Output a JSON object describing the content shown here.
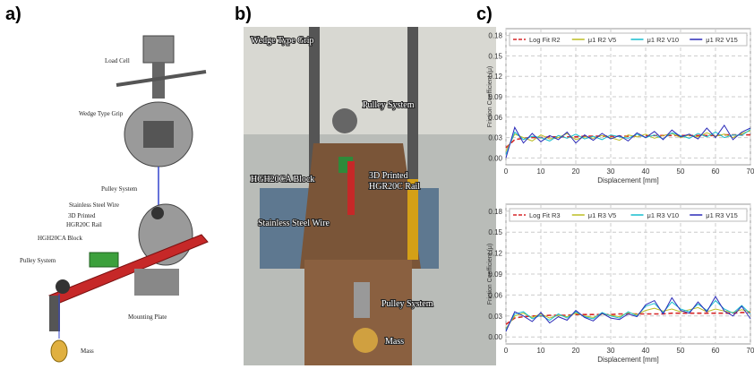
{
  "panel_labels": [
    "a)",
    "b)",
    "c)"
  ],
  "diagram": {
    "labels": [
      "Load Cell",
      "Wedge Type Grip",
      "Pulley System",
      "Stainless Steel Wire",
      [
        "3D Printed",
        "HGR20C Rail"
      ],
      "HGH20CA Block",
      "Pulley System",
      "Mounting Plate",
      "Mass"
    ]
  },
  "photo": {
    "labels": [
      "Wedge Type Grip",
      "Pulley System",
      "HGH20CA Block",
      [
        "3D Printed",
        "HGR20C Rail"
      ],
      "Stainless Steel Wire",
      "Pulley System",
      "Mass"
    ]
  },
  "chart_data": [
    {
      "type": "line",
      "xlabel": "Displacement [mm]",
      "ylabel": "Friction Coefficient (μ)",
      "grid": true,
      "legend": "upper center",
      "xlim": [
        0,
        70
      ],
      "xticks": [
        0,
        10,
        20,
        30,
        40,
        50,
        60,
        70
      ],
      "ylim": [
        -0.01,
        0.19
      ],
      "yticks": [
        {
          "value": 0,
          "label": "0.00"
        },
        0.03,
        0.06,
        0.09,
        0.12,
        0.15,
        0.18
      ],
      "x": [
        0,
        2.5,
        5,
        7.5,
        10,
        12.5,
        15,
        17.5,
        20,
        22.5,
        25,
        27.5,
        30,
        32.5,
        35,
        37.5,
        40,
        42.5,
        45,
        47.5,
        50,
        52.5,
        55,
        57.5,
        60,
        62.5,
        65,
        67.5,
        70
      ],
      "series": [
        {
          "name": "Log Fit R2",
          "color": "#d62728",
          "dashed": true,
          "values": [
            0.015,
            0.027,
            0.029,
            0.03,
            0.03,
            0.031,
            0.031,
            0.031,
            0.031,
            0.032,
            0.032,
            0.032,
            0.032,
            0.032,
            0.032,
            0.032,
            0.033,
            0.033,
            0.033,
            0.033,
            0.033,
            0.033,
            0.033,
            0.033,
            0.033,
            0.034,
            0.034,
            0.034,
            0.034
          ]
        },
        {
          "name": "μ1 R2 V5",
          "color": "#bcbd22",
          "values": [
            0.01,
            0.035,
            0.03,
            0.025,
            0.034,
            0.028,
            0.03,
            0.036,
            0.027,
            0.031,
            0.029,
            0.033,
            0.03,
            0.026,
            0.034,
            0.031,
            0.035,
            0.029,
            0.033,
            0.036,
            0.03,
            0.034,
            0.031,
            0.037,
            0.032,
            0.035,
            0.03,
            0.036,
            0.04
          ]
        },
        {
          "name": "μ1 R2 V10",
          "color": "#17becf",
          "values": [
            0.005,
            0.038,
            0.027,
            0.032,
            0.03,
            0.025,
            0.033,
            0.029,
            0.035,
            0.028,
            0.032,
            0.027,
            0.034,
            0.031,
            0.029,
            0.035,
            0.03,
            0.034,
            0.028,
            0.037,
            0.033,
            0.029,
            0.036,
            0.031,
            0.038,
            0.03,
            0.034,
            0.033,
            0.042
          ]
        },
        {
          "name": "μ1 R2 V15",
          "color": "#2a2ab8",
          "values": [
            0.0,
            0.045,
            0.022,
            0.036,
            0.024,
            0.033,
            0.027,
            0.038,
            0.022,
            0.034,
            0.026,
            0.036,
            0.028,
            0.033,
            0.025,
            0.037,
            0.03,
            0.039,
            0.027,
            0.041,
            0.031,
            0.035,
            0.028,
            0.044,
            0.03,
            0.048,
            0.027,
            0.038,
            0.044
          ]
        }
      ]
    },
    {
      "type": "line",
      "xlabel": "Displacement [mm]",
      "ylabel": "Friction Coefficient (μ)",
      "grid": true,
      "legend": "upper center",
      "xlim": [
        0,
        70
      ],
      "xticks": [
        0,
        10,
        20,
        30,
        40,
        50,
        60,
        70
      ],
      "ylim": [
        -0.01,
        0.19
      ],
      "yticks": [
        {
          "value": 0,
          "label": "0.00"
        },
        0.03,
        0.06,
        0.09,
        0.12,
        0.15,
        0.18
      ],
      "x": [
        0,
        2.5,
        5,
        7.5,
        10,
        12.5,
        15,
        17.5,
        20,
        22.5,
        25,
        27.5,
        30,
        32.5,
        35,
        37.5,
        40,
        42.5,
        45,
        47.5,
        50,
        52.5,
        55,
        57.5,
        60,
        62.5,
        65,
        67.5,
        70
      ],
      "series": [
        {
          "name": "Log Fit R3",
          "color": "#d62728",
          "dashed": true,
          "values": [
            0.018,
            0.027,
            0.029,
            0.03,
            0.03,
            0.031,
            0.031,
            0.031,
            0.032,
            0.032,
            0.032,
            0.032,
            0.032,
            0.033,
            0.033,
            0.033,
            0.033,
            0.033,
            0.033,
            0.034,
            0.034,
            0.034,
            0.034,
            0.034,
            0.034,
            0.034,
            0.034,
            0.035,
            0.035
          ]
        },
        {
          "name": "μ1 R3 V5",
          "color": "#bcbd22",
          "values": [
            0.012,
            0.03,
            0.034,
            0.028,
            0.033,
            0.027,
            0.031,
            0.029,
            0.034,
            0.03,
            0.028,
            0.033,
            0.031,
            0.029,
            0.035,
            0.032,
            0.038,
            0.041,
            0.037,
            0.04,
            0.036,
            0.039,
            0.042,
            0.036,
            0.04,
            0.037,
            0.035,
            0.039,
            0.036
          ]
        },
        {
          "name": "μ1 R3 V10",
          "color": "#17becf",
          "values": [
            0.01,
            0.033,
            0.036,
            0.026,
            0.031,
            0.024,
            0.033,
            0.027,
            0.036,
            0.029,
            0.026,
            0.035,
            0.03,
            0.027,
            0.036,
            0.03,
            0.044,
            0.048,
            0.035,
            0.05,
            0.04,
            0.036,
            0.047,
            0.038,
            0.052,
            0.04,
            0.034,
            0.045,
            0.033
          ]
        },
        {
          "name": "μ1 R3 V15",
          "color": "#2a2ab8",
          "values": [
            0.008,
            0.036,
            0.03,
            0.022,
            0.035,
            0.02,
            0.029,
            0.024,
            0.038,
            0.028,
            0.023,
            0.034,
            0.027,
            0.025,
            0.033,
            0.029,
            0.046,
            0.052,
            0.033,
            0.056,
            0.038,
            0.034,
            0.05,
            0.036,
            0.058,
            0.037,
            0.03,
            0.044,
            0.026
          ]
        }
      ]
    }
  ]
}
